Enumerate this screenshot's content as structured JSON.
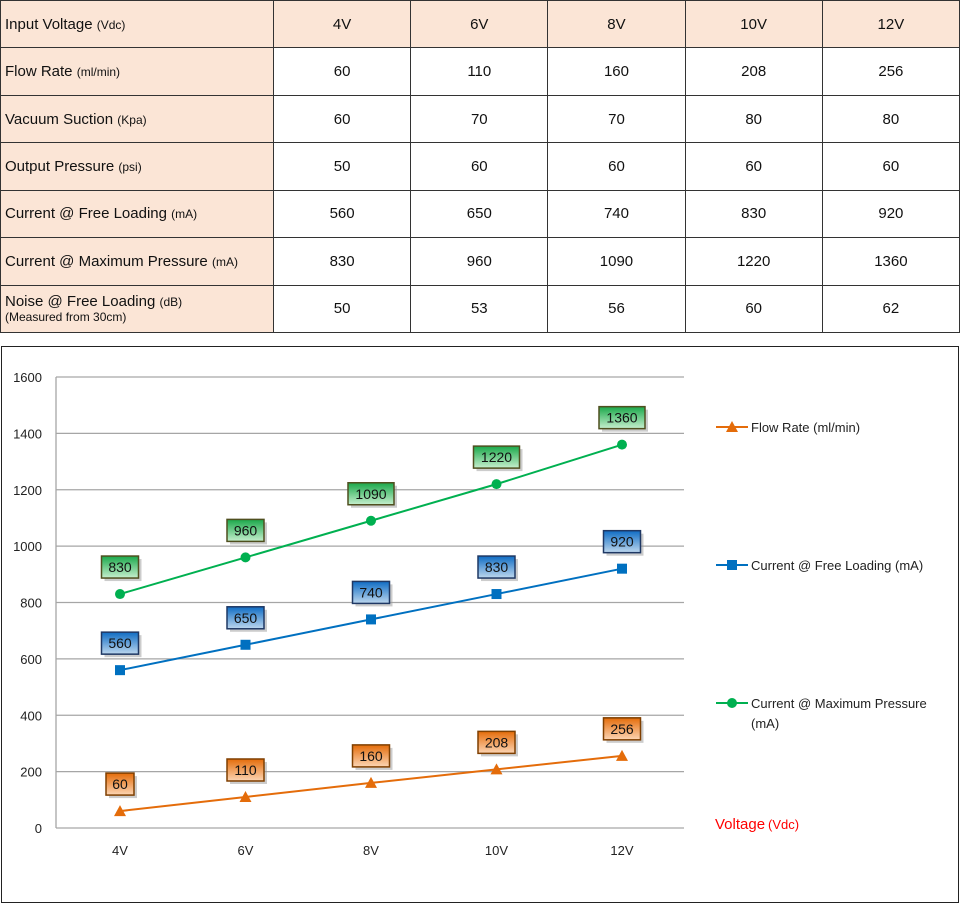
{
  "table": {
    "header": {
      "label": "Input Voltage",
      "unit": "(Vdc)",
      "values": [
        "4V",
        "6V",
        "8V",
        "10V",
        "12V"
      ]
    },
    "rows": [
      {
        "label": "Flow Rate",
        "unit": "(ml/min)",
        "values": [
          "60",
          "110",
          "160",
          "208",
          "256"
        ]
      },
      {
        "label": "Vacuum Suction",
        "unit": "(Kpa)",
        "values": [
          "60",
          "70",
          "70",
          "80",
          "80"
        ]
      },
      {
        "label": "Output Pressure",
        "unit": "(psi)",
        "values": [
          "50",
          "60",
          "60",
          "60",
          "60"
        ]
      },
      {
        "label": "Current @ Free Loading",
        "unit": "(mA)",
        "values": [
          "560",
          "650",
          "740",
          "830",
          "920"
        ]
      },
      {
        "label": "Current @ Maximum Pressure",
        "unit": "(mA)",
        "values": [
          "830",
          "960",
          "1090",
          "1220",
          "1360"
        ]
      },
      {
        "label": "Noise @ Free Loading",
        "unit": "(dB)",
        "note": "(Measured from 30cm)",
        "values": [
          "50",
          "53",
          "56",
          "60",
          "62"
        ]
      }
    ]
  },
  "chart_data": {
    "type": "line",
    "categories": [
      "4V",
      "6V",
      "8V",
      "10V",
      "12V"
    ],
    "xlabel": "Voltage",
    "xlabel_unit": "(Vdc)",
    "ylim": [
      0,
      1600
    ],
    "yticks": [
      0,
      200,
      400,
      600,
      800,
      1000,
      1200,
      1400,
      1600
    ],
    "grid": true,
    "legend_position": "right",
    "series": [
      {
        "name": "Flow Rate (ml/min)",
        "marker": "triangle",
        "color": "#e46c0a",
        "label_fill": "#f79646",
        "label_border": "#7f3f00",
        "values": [
          60,
          110,
          160,
          208,
          256
        ]
      },
      {
        "name": "Current @ Free Loading (mA)",
        "marker": "square",
        "color": "#0070c0",
        "label_fill": "#2e86d6",
        "label_border": "#1f3864",
        "values": [
          560,
          650,
          740,
          830,
          920
        ]
      },
      {
        "name": "Current @ Maximum Pressure (mA)",
        "name_lines": [
          "Current @ Maximum Pressure",
          "(mA)"
        ],
        "marker": "circle",
        "color": "#00b050",
        "label_fill": "#33c060",
        "label_border": "#4f4f1f",
        "values": [
          830,
          960,
          1090,
          1220,
          1360
        ]
      }
    ]
  }
}
